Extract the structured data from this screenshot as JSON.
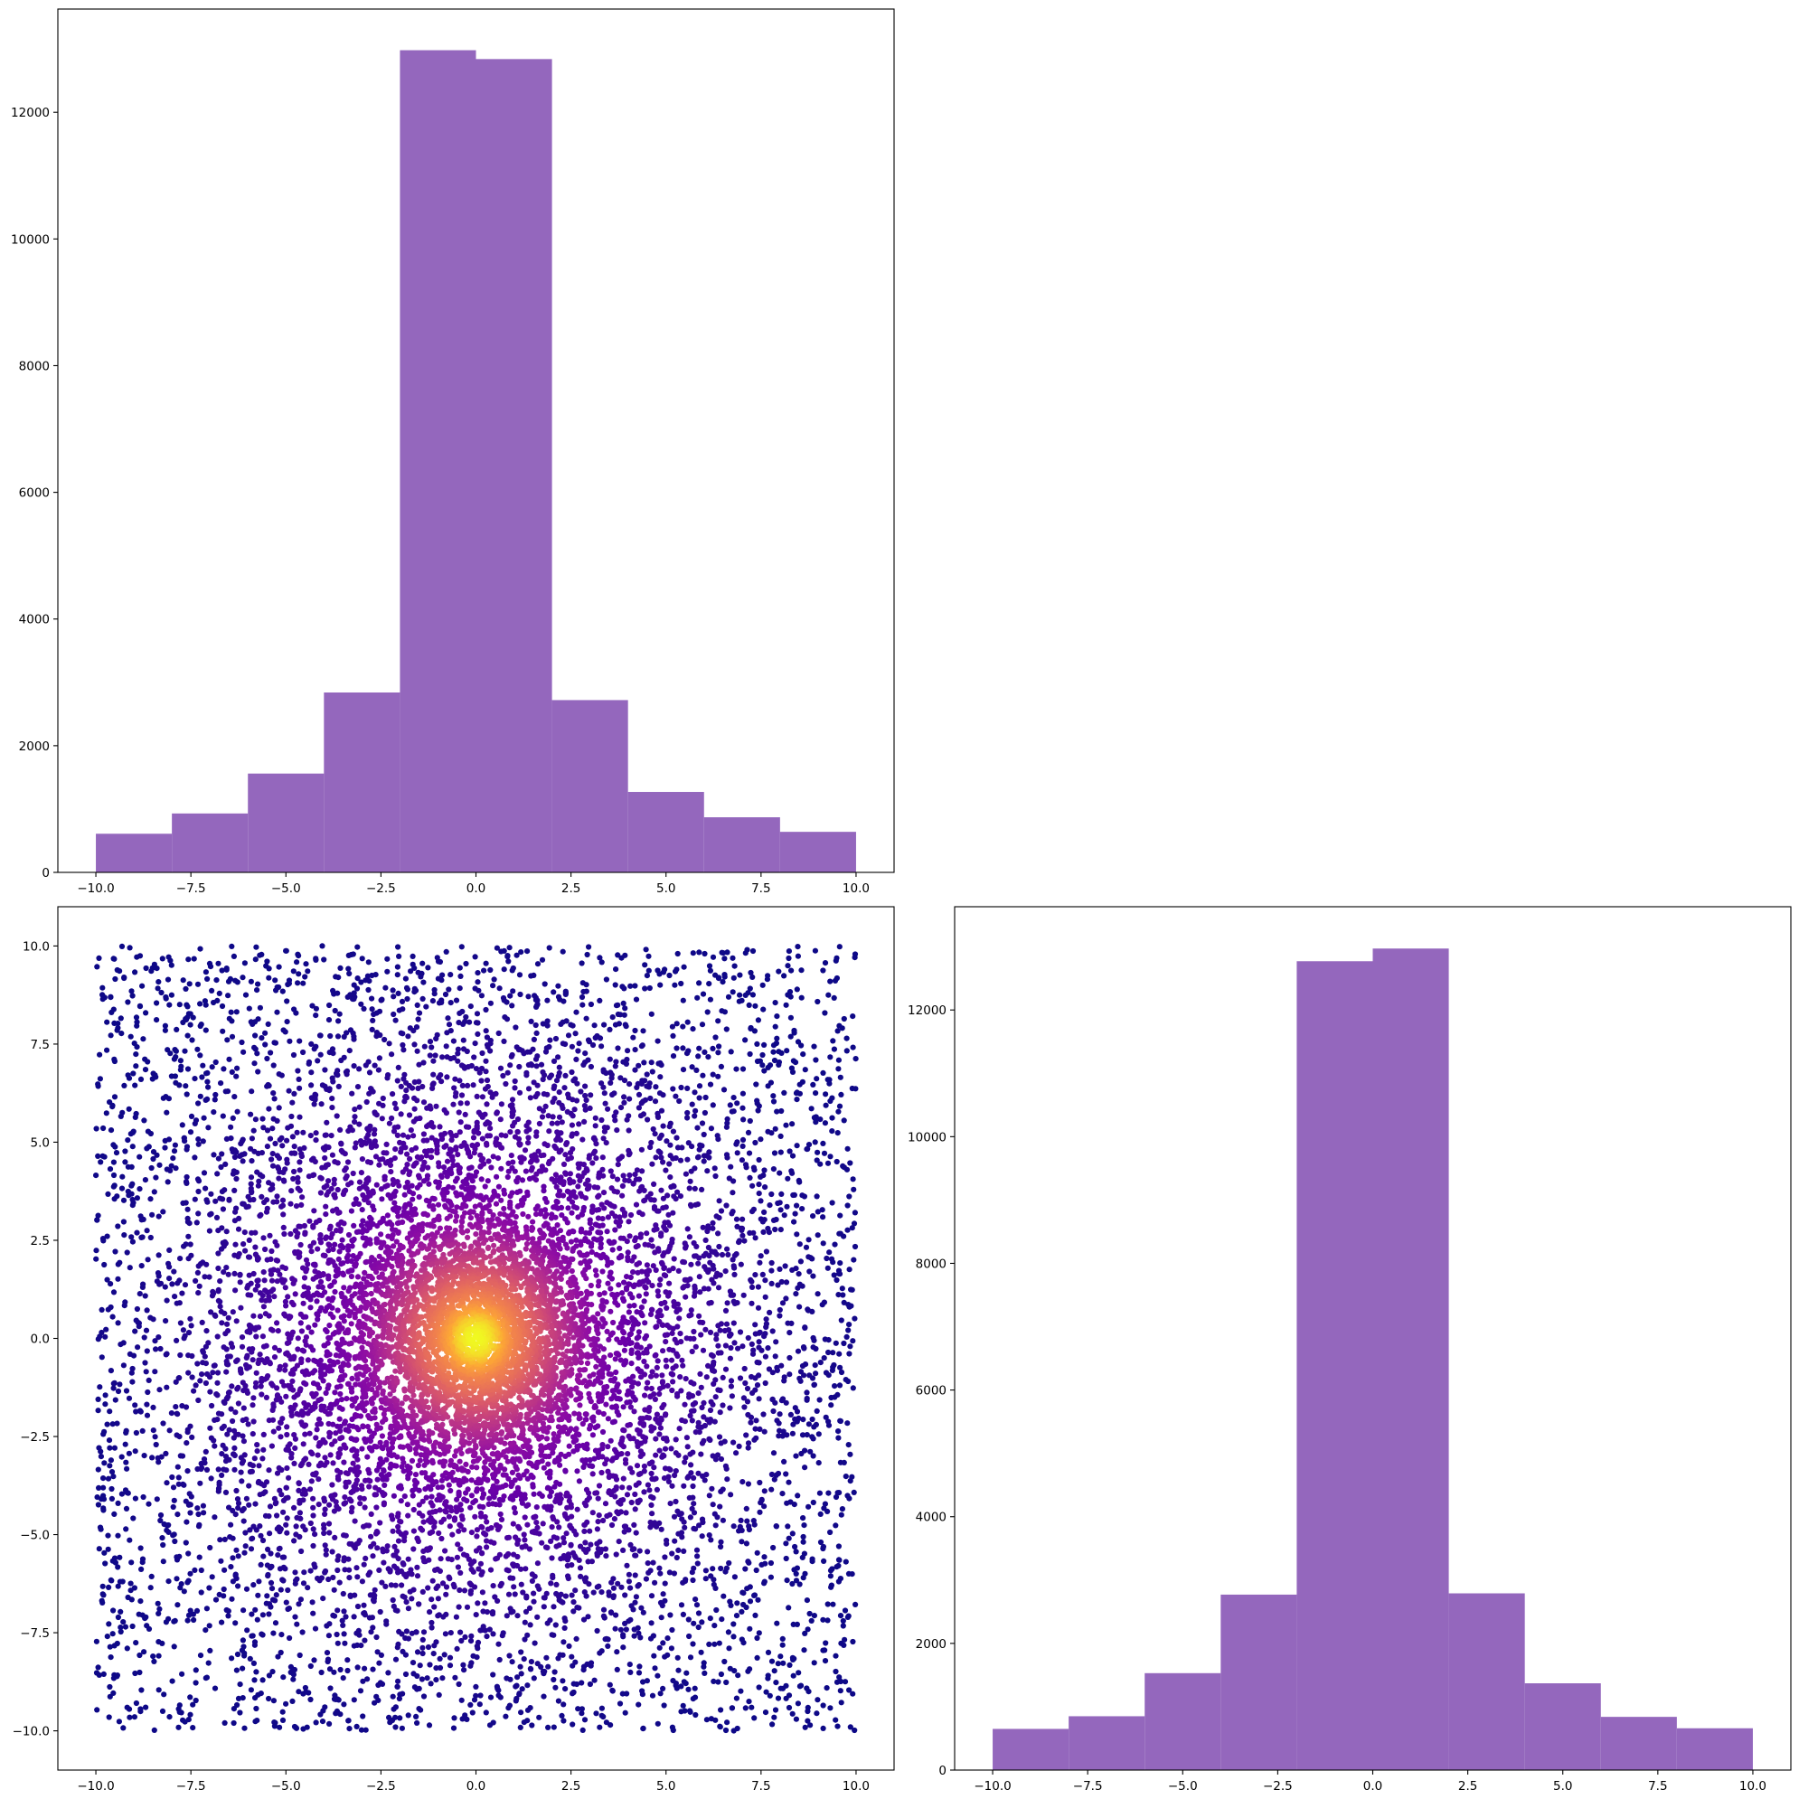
{
  "colors": {
    "histogram_bar": "#9467bd",
    "scatter_low": "#2a0593",
    "scatter_mid": "#8f0da4",
    "scatter_high": "#f0f921",
    "frame": "#000000"
  },
  "chart_data": [
    {
      "type": "bar",
      "subtype": "histogram",
      "position": "top-left",
      "bin_edges": [
        -10,
        -8,
        -6,
        -4,
        -2,
        0,
        2,
        4,
        6,
        8,
        10
      ],
      "values": [
        610,
        930,
        1560,
        2840,
        12980,
        12840,
        2720,
        1270,
        870,
        640
      ],
      "xlim": [
        -11,
        11
      ],
      "ylim": [
        0,
        13630
      ],
      "xticks": [
        -10,
        -7.5,
        -5,
        -2.5,
        0,
        2.5,
        5,
        7.5,
        10
      ],
      "xtick_labels": [
        "−10.0",
        "−7.5",
        "−5.0",
        "−2.5",
        "0.0",
        "2.5",
        "5.0",
        "7.5",
        "10.0"
      ],
      "yticks": [
        0,
        2000,
        4000,
        6000,
        8000,
        10000,
        12000
      ],
      "ytick_labels": [
        "0",
        "2000",
        "4000",
        "6000",
        "8000",
        "10000",
        "12000"
      ],
      "color": "#9467bd",
      "grid": false
    },
    {
      "type": "scatter",
      "position": "bottom-left",
      "description": "points uniformly spread over [-10,10]x[-10,10], denser toward the center, colored by density (plasma colormap: dark purple at the edges, yellow at the center)",
      "xlim": [
        -11,
        11
      ],
      "ylim": [
        -11,
        11
      ],
      "xticks": [
        -10,
        -7.5,
        -5,
        -2.5,
        0,
        2.5,
        5,
        7.5,
        10
      ],
      "xtick_labels": [
        "−10.0",
        "−7.5",
        "−5.0",
        "−2.5",
        "0.0",
        "2.5",
        "5.0",
        "7.5",
        "10.0"
      ],
      "yticks": [
        -10,
        -7.5,
        -5,
        -2.5,
        0,
        2.5,
        5,
        7.5,
        10
      ],
      "ytick_labels": [
        "−10.0",
        "−7.5",
        "−5.0",
        "−2.5",
        "0.0",
        "2.5",
        "5.0",
        "7.5",
        "10.0"
      ],
      "colormap": "plasma",
      "grid": false
    },
    {
      "type": "bar",
      "subtype": "histogram",
      "position": "bottom-right",
      "bin_edges": [
        -10,
        -8,
        -6,
        -4,
        -2,
        0,
        2,
        4,
        6,
        8,
        10
      ],
      "values": [
        650,
        850,
        1530,
        2770,
        12770,
        12970,
        2790,
        1370,
        840,
        660
      ],
      "xlim": [
        -11,
        11
      ],
      "ylim": [
        0,
        13630
      ],
      "xticks": [
        -10,
        -7.5,
        -5,
        -2.5,
        0,
        2.5,
        5,
        7.5,
        10
      ],
      "xtick_labels": [
        "−10.0",
        "−7.5",
        "−5.0",
        "−2.5",
        "0.0",
        "2.5",
        "5.0",
        "7.5",
        "10.0"
      ],
      "yticks": [
        0,
        2000,
        4000,
        6000,
        8000,
        10000,
        12000
      ],
      "ytick_labels": [
        "0",
        "2000",
        "4000",
        "6000",
        "8000",
        "10000",
        "12000"
      ],
      "color": "#9467bd",
      "grid": false
    }
  ]
}
